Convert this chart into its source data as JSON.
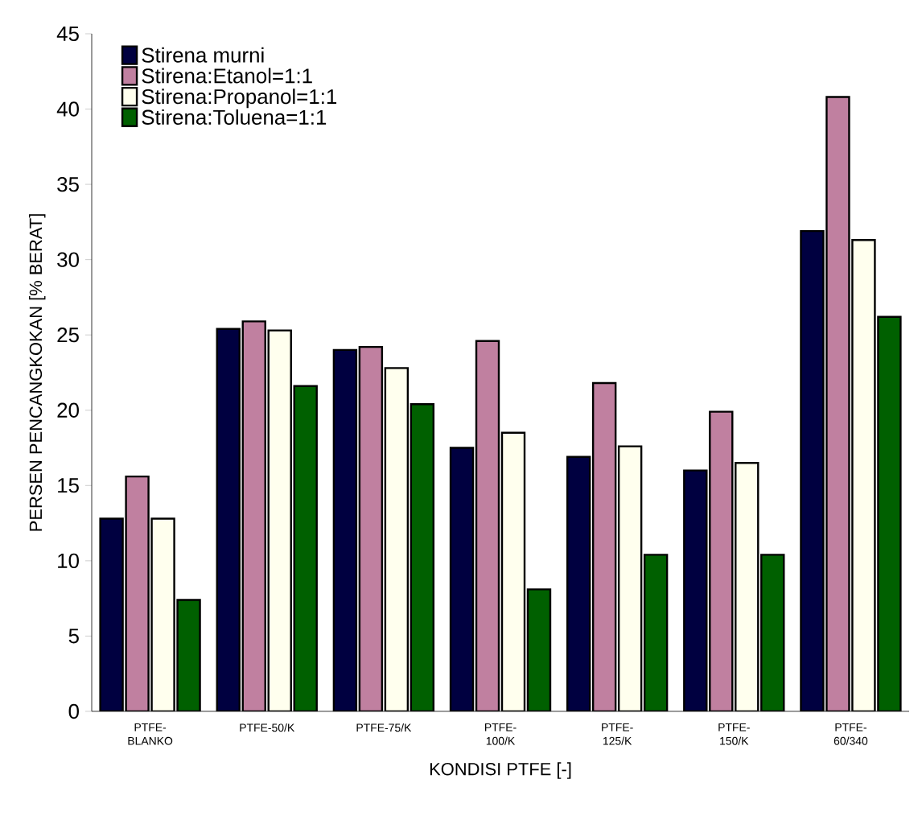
{
  "chart_data": {
    "type": "bar",
    "xlabel": "KONDISI PTFE [-]",
    "ylabel": "PERSEN PENCANGKOKAN [% BERAT]",
    "categories": [
      "PTFE-BLANKO",
      "PTFE-50/K",
      "PTFE-75/K",
      "PTFE-100/K",
      "PTFE-125/K",
      "PTFE-150/K",
      "PTFE-60/340"
    ],
    "series": [
      {
        "name": "Stirena murni",
        "color": "#000040",
        "values": [
          12.8,
          25.4,
          24.0,
          17.5,
          16.9,
          16.0,
          31.9
        ]
      },
      {
        "name": "Stirena:Etanol=1:1",
        "color": "#c080a0",
        "values": [
          15.6,
          25.9,
          24.2,
          24.6,
          21.8,
          19.9,
          40.8
        ]
      },
      {
        "name": "Stirena:Propanol=1:1",
        "color": "#ffffee",
        "values": [
          12.8,
          25.3,
          22.8,
          18.5,
          17.6,
          16.5,
          31.3
        ]
      },
      {
        "name": "Stirena:Toluena=1:1",
        "color": "#006000",
        "values": [
          7.4,
          21.6,
          20.4,
          8.1,
          10.4,
          10.4,
          26.2
        ]
      }
    ],
    "ylim": [
      0,
      45
    ],
    "yticks": [
      0,
      5,
      10,
      15,
      20,
      25,
      30,
      35,
      40,
      45
    ],
    "grid": false,
    "legend": "top left"
  }
}
